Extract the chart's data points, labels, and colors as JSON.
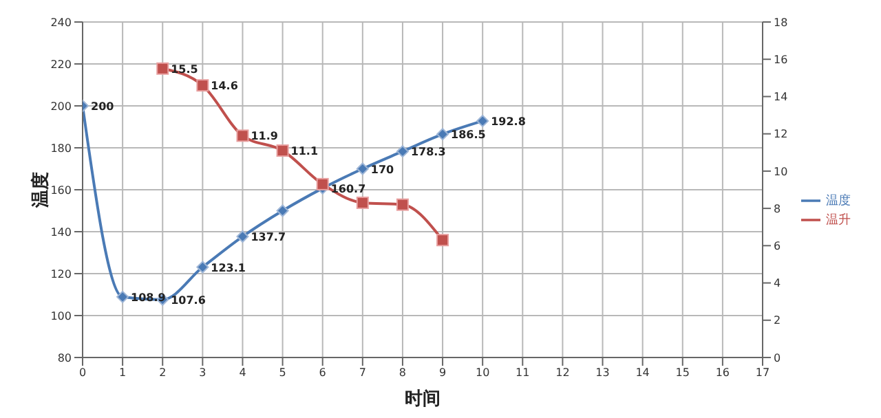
{
  "chart_data": {
    "type": "line",
    "xlabel": "时间",
    "ylabel": "温度",
    "x": [
      0,
      1,
      2,
      3,
      4,
      5,
      6,
      7,
      8,
      9,
      10
    ],
    "series": [
      {
        "name": "温度",
        "color": "#4a7ab5",
        "marker": "diamond",
        "values": [
          200,
          108.9,
          107.6,
          123.1,
          137.7,
          150,
          160.7,
          170,
          178.3,
          186.5,
          192.8
        ],
        "value_labels": [
          "200",
          "108.9",
          "107.6",
          "123.1",
          "137.7",
          null,
          "160.7",
          "170",
          "178.3",
          "186.5",
          "192.8"
        ]
      },
      {
        "name": "温升",
        "color": "#c0504d",
        "marker": "square",
        "axis": "y2",
        "x": [
          2,
          3,
          4,
          5,
          6,
          7,
          8,
          9
        ],
        "values": [
          15.5,
          14.6,
          11.9,
          11.1,
          9.3,
          8.3,
          8.2,
          6.3
        ],
        "value_labels": [
          "15.5",
          "14.6",
          "11.9",
          "11.1",
          null,
          null,
          null,
          null
        ]
      }
    ],
    "xlim": [
      0,
      17
    ],
    "xticks": [
      0,
      1,
      2,
      3,
      4,
      5,
      6,
      7,
      8,
      9,
      10,
      11,
      12,
      13,
      14,
      15,
      16,
      17
    ],
    "ylim": [
      80,
      240
    ],
    "yticks": [
      80,
      100,
      120,
      140,
      160,
      180,
      200,
      220,
      240
    ],
    "y2lim": [
      0,
      18
    ],
    "y2ticks": [
      0,
      2,
      4,
      6,
      8,
      10,
      12,
      14,
      16,
      18
    ],
    "grid": true,
    "legend": "right"
  }
}
